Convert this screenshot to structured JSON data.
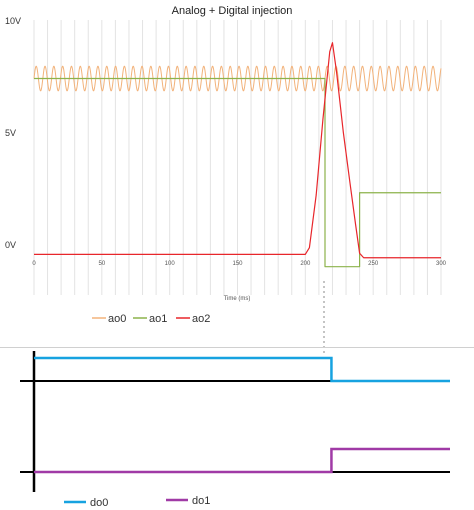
{
  "chart_data": [
    {
      "type": "line",
      "title": "Analog + Digital injection",
      "xlabel": "Time (ms)",
      "ylabel": "",
      "xlim": [
        0,
        300
      ],
      "ylim": [
        0,
        10
      ],
      "x_ticks": [
        0,
        50,
        100,
        150,
        200,
        250,
        300
      ],
      "x_tick_labels": [
        "0",
        "50",
        "100",
        "150",
        "200",
        "250",
        "300"
      ],
      "y_tick_values": [
        0,
        5,
        10
      ],
      "y_tick_labels": [
        "0V",
        "5V",
        "10V"
      ],
      "grid": "vertical",
      "legend_position": "bottom-left",
      "series": [
        {
          "name": "ao0",
          "color": "#f2b27a",
          "kind": "sine",
          "offset": 7.7,
          "amplitude": 0.55,
          "period_ms": 6.5,
          "x_range": [
            0,
            300
          ]
        },
        {
          "name": "ao1",
          "color": "#8cb24b",
          "kind": "piecewise",
          "points": [
            [
              0,
              7.7
            ],
            [
              214.5,
              7.7
            ],
            [
              214.5,
              -0.7
            ],
            [
              240,
              -0.7
            ],
            [
              240,
              2.6
            ],
            [
              300,
              2.6
            ]
          ]
        },
        {
          "name": "ao2",
          "color": "#e8262b",
          "kind": "piecewise",
          "points": [
            [
              0,
              -0.15
            ],
            [
              200,
              -0.15
            ],
            [
              203,
              0.15
            ],
            [
              208,
              2.5
            ],
            [
              213,
              5.9
            ],
            [
              218,
              8.9
            ],
            [
              220,
              9.3
            ],
            [
              223,
              8.0
            ],
            [
              228,
              5.3
            ],
            [
              233,
              3.0
            ],
            [
              237,
              1.2
            ],
            [
              240,
              -0.1
            ],
            [
              243,
              -0.3
            ],
            [
              300,
              -0.3
            ]
          ]
        }
      ]
    },
    {
      "type": "line",
      "title": "",
      "xlabel": "",
      "ylabel": "",
      "xlim": [
        0,
        300
      ],
      "ylim": [
        0,
        1
      ],
      "legend_position": "bottom-left",
      "series": [
        {
          "name": "do0",
          "color": "#17a2e0",
          "baseline_color": "#000000",
          "points": [
            [
              0,
              1
            ],
            [
              214.5,
              1
            ],
            [
              214.5,
              0
            ],
            [
              300,
              0
            ]
          ]
        },
        {
          "name": "do1",
          "color": "#a03aa6",
          "baseline_color": "#000000",
          "points": [
            [
              0,
              0
            ],
            [
              214.5,
              0
            ],
            [
              214.5,
              1
            ],
            [
              300,
              1
            ]
          ]
        }
      ]
    }
  ]
}
